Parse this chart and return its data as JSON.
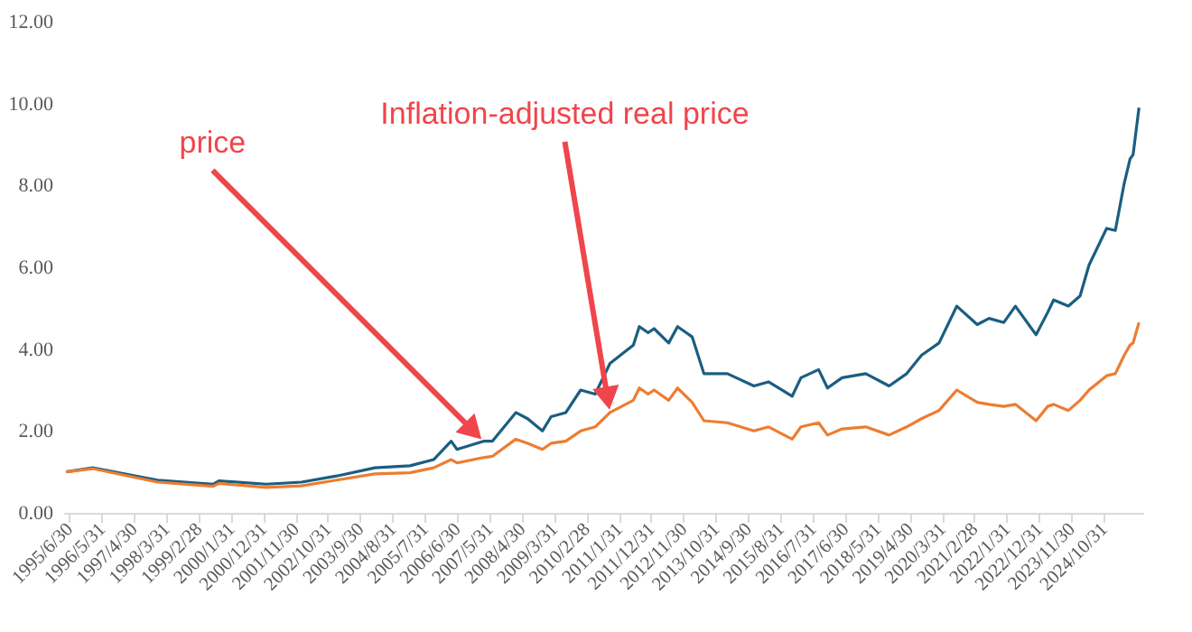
{
  "chart_data": {
    "type": "line",
    "x": [
      "1995-06",
      "1996-03",
      "1998-01",
      "1999-08",
      "1999-10",
      "2001-02",
      "2002-02",
      "2003-02",
      "2004-03",
      "2005-03",
      "2005-11",
      "2006-05",
      "2006-07",
      "2007-04",
      "2007-07",
      "2008-03",
      "2008-07",
      "2008-12",
      "2009-03",
      "2009-08",
      "2010-01",
      "2010-06",
      "2010-11",
      "2011-07",
      "2011-09",
      "2011-12",
      "2012-02",
      "2012-07",
      "2012-10",
      "2013-03",
      "2013-07",
      "2014-03",
      "2014-12",
      "2015-05",
      "2016-01",
      "2016-04",
      "2016-10",
      "2017-01",
      "2017-06",
      "2018-02",
      "2018-10",
      "2019-04",
      "2019-09",
      "2020-03",
      "2020-09",
      "2021-04",
      "2021-08",
      "2022-01",
      "2022-05",
      "2022-12",
      "2023-04",
      "2023-06",
      "2023-11",
      "2024-03",
      "2024-06",
      "2024-12",
      "2025-03",
      "2025-06",
      "2025-08",
      "2025-09",
      "2025-11"
    ],
    "series": [
      {
        "color": "#1b5e80",
        "values": [
          1.0,
          1.1,
          0.8,
          0.7,
          0.78,
          0.7,
          0.75,
          0.9,
          1.1,
          1.15,
          1.3,
          1.75,
          1.55,
          1.75,
          1.75,
          2.45,
          2.3,
          2.0,
          2.35,
          2.45,
          3.0,
          2.9,
          3.65,
          4.1,
          4.55,
          4.4,
          4.5,
          4.15,
          4.55,
          4.3,
          3.4,
          3.4,
          3.1,
          3.2,
          2.85,
          3.3,
          3.5,
          3.05,
          3.3,
          3.4,
          3.1,
          3.4,
          3.85,
          4.15,
          5.05,
          4.6,
          4.75,
          4.65,
          5.05,
          4.35,
          4.9,
          5.2,
          5.05,
          5.3,
          6.05,
          6.95,
          6.9,
          8.05,
          8.65,
          8.75,
          9.9
        ]
      },
      {
        "color": "#ed7d31",
        "values": [
          1.0,
          1.08,
          0.75,
          0.65,
          0.72,
          0.62,
          0.66,
          0.8,
          0.95,
          0.98,
          1.1,
          1.3,
          1.22,
          1.35,
          1.38,
          1.8,
          1.7,
          1.55,
          1.7,
          1.75,
          2.0,
          2.1,
          2.45,
          2.75,
          3.05,
          2.9,
          3.0,
          2.75,
          3.05,
          2.7,
          2.25,
          2.2,
          2.0,
          2.1,
          1.8,
          2.1,
          2.2,
          1.9,
          2.05,
          2.1,
          1.9,
          2.1,
          2.3,
          2.5,
          3.0,
          2.7,
          2.65,
          2.6,
          2.65,
          2.25,
          2.6,
          2.65,
          2.5,
          2.75,
          3.0,
          3.35,
          3.4,
          3.85,
          4.1,
          4.15,
          4.65
        ]
      }
    ],
    "xlim": [
      "1995-05-01",
      "2025-12-15"
    ],
    "xticks": [
      {
        "value": "1995-06-30",
        "label": "1995/6/30"
      },
      {
        "value": "1996-05-31",
        "label": "1996/5/31"
      },
      {
        "value": "1997-04-30",
        "label": "1997/4/30"
      },
      {
        "value": "1998-03-31",
        "label": "1998/3/31"
      },
      {
        "value": "1999-02-28",
        "label": "1999/2/28"
      },
      {
        "value": "2000-01-31",
        "label": "2000/1/31"
      },
      {
        "value": "2000-12-31",
        "label": "2000/12/31"
      },
      {
        "value": "2001-11-30",
        "label": "2001/11/30"
      },
      {
        "value": "2002-10-31",
        "label": "2002/10/31"
      },
      {
        "value": "2003-09-30",
        "label": "2003/9/30"
      },
      {
        "value": "2004-08-31",
        "label": "2004/8/31"
      },
      {
        "value": "2005-07-31",
        "label": "2005/7/31"
      },
      {
        "value": "2006-06-30",
        "label": "2006/6/30"
      },
      {
        "value": "2007-05-31",
        "label": "2007/5/31"
      },
      {
        "value": "2008-04-30",
        "label": "2008/4/30"
      },
      {
        "value": "2009-03-31",
        "label": "2009/3/31"
      },
      {
        "value": "2010-02-28",
        "label": "2010/2/28"
      },
      {
        "value": "2011-01-31",
        "label": "2011/1/31"
      },
      {
        "value": "2011-12-31",
        "label": "2011/12/31"
      },
      {
        "value": "2012-11-30",
        "label": "2012/11/30"
      },
      {
        "value": "2013-10-31",
        "label": "2013/10/31"
      },
      {
        "value": "2014-09-30",
        "label": "2014/9/30"
      },
      {
        "value": "2015-08-31",
        "label": "2015/8/31"
      },
      {
        "value": "2016-07-31",
        "label": "2016/7/31"
      },
      {
        "value": "2017-06-30",
        "label": "2017/6/30"
      },
      {
        "value": "2018-05-31",
        "label": "2018/5/31"
      },
      {
        "value": "2019-04-30",
        "label": "2019/4/30"
      },
      {
        "value": "2020-03-31",
        "label": "2020/3/31"
      },
      {
        "value": "2021-02-28",
        "label": "2021/2/28"
      },
      {
        "value": "2022-01-31",
        "label": "2022/1/31"
      },
      {
        "value": "2022-12-31",
        "label": "2022/12/31"
      },
      {
        "value": "2023-11-30",
        "label": "2023/11/30"
      },
      {
        "value": "2024-10-31",
        "label": "2024/10/31"
      }
    ],
    "ylim": [
      0,
      12
    ],
    "yticks": [
      {
        "value": 0,
        "label": "0.00"
      },
      {
        "value": 2,
        "label": "2.00"
      },
      {
        "value": 4,
        "label": "4.00"
      },
      {
        "value": 6,
        "label": "6.00"
      },
      {
        "value": 8,
        "label": "8.00"
      },
      {
        "value": 10,
        "label": "10.00"
      },
      {
        "value": 12,
        "label": "12.00"
      }
    ],
    "grid": false,
    "legend": false,
    "marker": "none",
    "line_style": "solid",
    "annotations": [
      {
        "text": "price",
        "x": "2007-04",
        "y": 1.75
      },
      {
        "text": "Inflation-adjusted real price",
        "x": "2010-11",
        "y": 2.45
      }
    ]
  }
}
